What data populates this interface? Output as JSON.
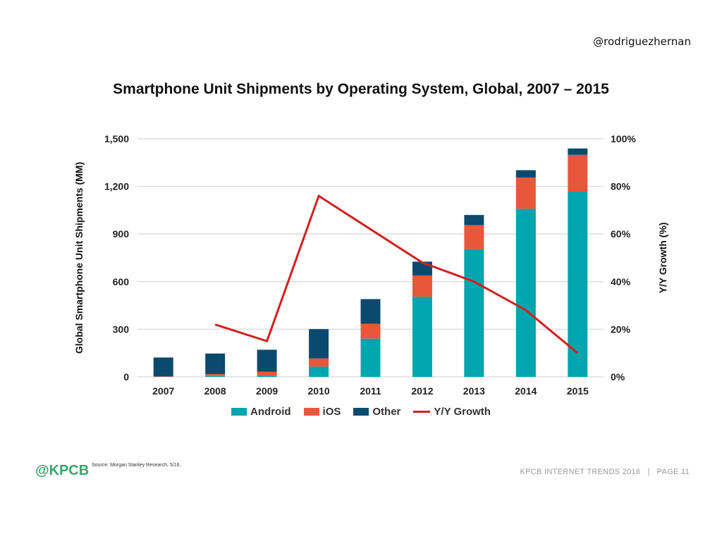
{
  "handle": "@rodriguezhernan",
  "logo": "@KPCB",
  "source": "Source: Morgan Stanley Research, 5/16.",
  "footer": "KPCB INTERNET TRENDS 2016   |   PAGE 11",
  "chart_data": {
    "type": "bar",
    "stacked": true,
    "title": "Smartphone Unit Shipments by Operating System, Global, 2007 – 2015",
    "ylabel": "Global Smartphone Unit Shipments (MM)",
    "y2label": "Y/Y Growth (%)",
    "ylim": [
      0,
      1500
    ],
    "y2lim": [
      0,
      100
    ],
    "yticks": [
      "0",
      "300",
      "600",
      "900",
      "1,200",
      "1,500"
    ],
    "y2ticks": [
      "0%",
      "20%",
      "40%",
      "60%",
      "80%",
      "100%"
    ],
    "grid": true,
    "legend": "bottom",
    "categories": [
      "2007",
      "2008",
      "2009",
      "2010",
      "2011",
      "2012",
      "2013",
      "2014",
      "2015"
    ],
    "series": [
      {
        "name": "Android",
        "type": "bar",
        "color": "#00A5AD",
        "values": [
          0,
          5,
          7,
          65,
          241,
          505,
          805,
          1059,
          1167
        ]
      },
      {
        "name": "iOS",
        "type": "bar",
        "color": "#E8573A",
        "values": [
          3,
          12,
          25,
          51,
          93,
          134,
          151,
          196,
          232
        ]
      },
      {
        "name": "Other",
        "type": "bar",
        "color": "#0B4A6E",
        "values": [
          119,
          130,
          139,
          185,
          156,
          87,
          64,
          47,
          40
        ]
      },
      {
        "name": "Y/Y Growth",
        "type": "line",
        "axis": "right",
        "color": "#D0201E",
        "values": [
          null,
          22,
          15,
          76,
          62,
          48,
          40,
          28,
          10
        ]
      }
    ]
  }
}
